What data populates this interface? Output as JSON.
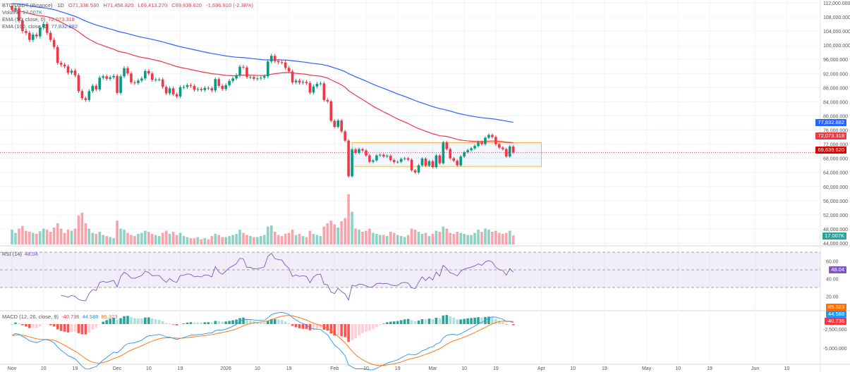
{
  "header": {
    "symbol": "BTC/USDT (Binance) · 1D",
    "open": "O71,336.530",
    "high": "H71,456.820",
    "low": "L69,413.270",
    "close": "C69,639.620",
    "change": "-1,696.910 (-2.38%)",
    "volume_label": "Volume",
    "volume_value": "17.007K",
    "ema50_label": "EMA (50, close, 0)",
    "ema50_value": "72,073.318",
    "ema100_label": "EMA (100, close, 0)",
    "ema100_value": "77,832.882",
    "rsi_label": "RSI (14)",
    "rsi_value": "48.04",
    "macd_label": "MACD (12, 26, close, 9)",
    "macd_hist": "-40.736",
    "macd_line": "44.588",
    "macd_signal": "85.323"
  },
  "tags": {
    "ema100": "77,832.882",
    "ema50": "72,073.318",
    "last_price": "69,639.620",
    "volume": "17.007K",
    "rsi": "48.04",
    "macd_signal": "85.323",
    "macd_line": "44.588",
    "macd_hist": "-40.736"
  },
  "colors": {
    "up": "#089981",
    "down": "#f23645",
    "ema50": "#f23645",
    "ema100": "#2962ff",
    "rsi": "#7e57c2",
    "macd": "#2196f3",
    "signal": "#ff6d00",
    "box": "#2962ff"
  },
  "chart_data": {
    "type": "candlestick",
    "start_date": "Nov 1",
    "price_axis": {
      "min": 44000,
      "max": 112000,
      "ticks": [
        112000,
        108000,
        104000,
        100000,
        96000,
        92000,
        88000,
        84000,
        80000,
        76000,
        72000,
        68000,
        64000,
        60000,
        56000,
        52000,
        48000,
        44000
      ],
      "labels": [
        "112,000.000",
        "108,000.000",
        "104,000.000",
        "100,000.000",
        "96,000.000",
        "92,000.000",
        "88,000.000",
        "84,000.000",
        "80,000.000",
        "76,000.000",
        "72,000.000",
        "68,000.000",
        "64,000.000",
        "60,000.000",
        "56,000.000",
        "52,000.000",
        "48,000.000",
        "44,000.000"
      ]
    },
    "x_ticks": [
      {
        "day": 0,
        "label": "Nov"
      },
      {
        "day": 9,
        "label": "10"
      },
      {
        "day": 18,
        "label": "19"
      },
      {
        "day": 30,
        "label": "Dec"
      },
      {
        "day": 39,
        "label": "10"
      },
      {
        "day": 48,
        "label": "19"
      },
      {
        "day": 61,
        "label": "2026"
      },
      {
        "day": 70,
        "label": "10"
      },
      {
        "day": 79,
        "label": "19"
      },
      {
        "day": 92,
        "label": "Feb"
      },
      {
        "day": 101,
        "label": "10"
      },
      {
        "day": 110,
        "label": "19"
      },
      {
        "day": 120,
        "label": "Mar"
      },
      {
        "day": 129,
        "label": "10"
      },
      {
        "day": 138,
        "label": "19"
      },
      {
        "day": 151,
        "label": "Apr"
      },
      {
        "day": 160,
        "label": "10"
      },
      {
        "day": 169,
        "label": "19"
      },
      {
        "day": 181,
        "label": "May"
      },
      {
        "day": 190,
        "label": "10"
      },
      {
        "day": 199,
        "label": "19"
      },
      {
        "day": 212,
        "label": "Jun"
      },
      {
        "day": 221,
        "label": "10"
      }
    ],
    "closes": [
      110000,
      110500,
      107000,
      104000,
      103500,
      101500,
      103000,
      102500,
      105000,
      106000,
      103500,
      101500,
      99500,
      95000,
      94500,
      94000,
      92200,
      92800,
      91500,
      87000,
      85000,
      84500,
      87000,
      88500,
      87500,
      90800,
      91200,
      90500,
      90900,
      91300,
      86500,
      91200,
      93500,
      92000,
      89500,
      89300,
      90000,
      90600,
      92700,
      92000,
      90200,
      90300,
      90300,
      88200,
      86400,
      87800,
      86100,
      85500,
      88100,
      88200,
      88700,
      88500,
      87400,
      87600,
      87300,
      87900,
      87800,
      87200,
      90400,
      88500,
      87600,
      88700,
      89900,
      90600,
      91500,
      93900,
      93700,
      91000,
      91000,
      90500,
      90600,
      90800,
      91200,
      95400,
      97000,
      95500,
      95200,
      95100,
      93600,
      92600,
      89500,
      90000,
      89400,
      89600,
      89300,
      86600,
      88300,
      89100,
      89200,
      84500,
      84100,
      78600,
      76900,
      78700,
      75600,
      73000,
      62900,
      70500,
      69500,
      70600,
      70200,
      68800,
      67000,
      67400,
      68800,
      69000,
      68500,
      68700,
      67500,
      66900,
      67000,
      67800,
      68000,
      67600,
      64600,
      64000,
      66000,
      67900,
      65900,
      67200,
      65500,
      68800,
      66600,
      72500,
      70600,
      68000,
      67300,
      66000,
      68500,
      69700,
      70300,
      70800,
      71500,
      72600,
      72000,
      73800,
      74600,
      74000,
      72000,
      71000,
      70600,
      68500,
      71336,
      69640
    ],
    "volumes_k": [
      28,
      22,
      30,
      35,
      26,
      24,
      22,
      20,
      25,
      30,
      28,
      24,
      32,
      40,
      30,
      22,
      28,
      26,
      30,
      55,
      60,
      40,
      30,
      22,
      20,
      24,
      18,
      16,
      14,
      12,
      45,
      30,
      28,
      22,
      18,
      16,
      20,
      22,
      26,
      24,
      20,
      18,
      16,
      22,
      26,
      20,
      24,
      18,
      22,
      16,
      14,
      12,
      12,
      14,
      10,
      12,
      10,
      16,
      20,
      18,
      14,
      14,
      16,
      18,
      20,
      28,
      22,
      18,
      16,
      14,
      14,
      16,
      18,
      34,
      36,
      24,
      18,
      16,
      20,
      22,
      28,
      18,
      20,
      16,
      14,
      26,
      20,
      18,
      16,
      34,
      40,
      45,
      38,
      32,
      44,
      50,
      95,
      62,
      30,
      28,
      24,
      26,
      30,
      22,
      20,
      18,
      18,
      16,
      24,
      22,
      18,
      16,
      14,
      18,
      30,
      28,
      24,
      20,
      22,
      16,
      20,
      26,
      24,
      34,
      30,
      22,
      20,
      24,
      22,
      20,
      18,
      18,
      22,
      28,
      24,
      30,
      28,
      24,
      26,
      22,
      20,
      22,
      26,
      17
    ],
    "ema_seed": {
      "ema50": 109800,
      "ema100": 111800,
      "ema12": 108500,
      "ema26": 110200
    },
    "box": {
      "from_day": 97,
      "to_day": 151,
      "low": 65700,
      "high": 72400
    },
    "rsi_axis": {
      "levels": [
        70,
        50,
        30
      ],
      "ticks": [
        60,
        40,
        20
      ],
      "labels": [
        "60.00",
        "40.00",
        "20.00"
      ]
    },
    "macd_axis": {
      "ticks": [
        -2500000,
        -5000000
      ],
      "labels": [
        "-2,500,000",
        "-5,000,000"
      ],
      "scale": 1000
    }
  }
}
